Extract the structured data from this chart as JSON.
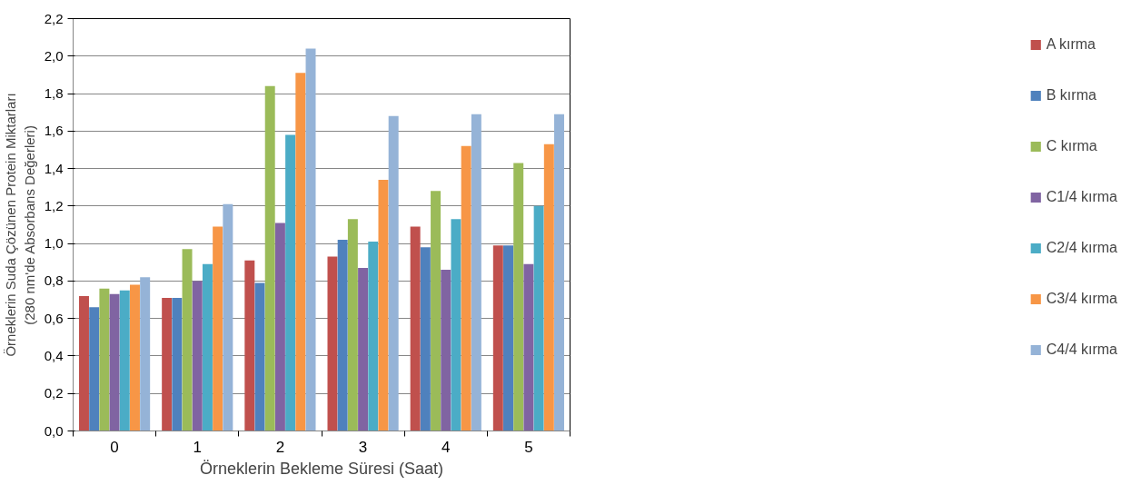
{
  "chart_data": {
    "type": "bar",
    "xlabel": "Örneklerin Bekleme Süresi (Saat)",
    "ylabel": "Örneklerin Suda Çözünen Protein Miktarları\n(280 nm'de Absorbans Değerleri)",
    "categories": [
      "0",
      "1",
      "2",
      "3",
      "4",
      "5"
    ],
    "series": [
      {
        "name": "A kırma",
        "color": "#c0504d",
        "values": [
          0.72,
          0.71,
          0.91,
          0.93,
          1.09,
          0.99
        ]
      },
      {
        "name": "B kırma",
        "color": "#4f81bd",
        "values": [
          0.66,
          0.71,
          0.79,
          1.02,
          0.98,
          0.99
        ]
      },
      {
        "name": "C kırma",
        "color": "#9bbb59",
        "values": [
          0.76,
          0.97,
          1.84,
          1.13,
          1.28,
          1.43
        ]
      },
      {
        "name": "C1/4 kırma",
        "color": "#8064a2",
        "values": [
          0.73,
          0.8,
          1.11,
          0.87,
          0.86,
          0.89
        ]
      },
      {
        "name": "C2/4 kırma",
        "color": "#4bacc6",
        "values": [
          0.75,
          0.89,
          1.58,
          1.01,
          1.13,
          1.2
        ]
      },
      {
        "name": "C3/4 kırma",
        "color": "#f79646",
        "values": [
          0.78,
          1.09,
          1.91,
          1.34,
          1.52,
          1.53
        ]
      },
      {
        "name": "C4/4 kırma",
        "color": "#95b3d7",
        "values": [
          0.82,
          1.21,
          2.04,
          1.68,
          1.69,
          1.69
        ]
      }
    ],
    "ylim": [
      0,
      2.2
    ],
    "yticks": [
      {
        "value": 0,
        "label": "0,0"
      },
      {
        "value": 0.2,
        "label": "0,2"
      },
      {
        "value": 0.4,
        "label": "0,4"
      },
      {
        "value": 0.6,
        "label": "0,6"
      },
      {
        "value": 0.8,
        "label": "0,8"
      },
      {
        "value": 1.0,
        "label": "1,0"
      },
      {
        "value": 1.2,
        "label": "1,2"
      },
      {
        "value": 1.4,
        "label": "1,4"
      },
      {
        "value": 1.6,
        "label": "1,6"
      },
      {
        "value": 1.8,
        "label": "1,8"
      },
      {
        "value": 2.0,
        "label": "2,0"
      },
      {
        "value": 2.2,
        "label": "2,2"
      }
    ],
    "grid": "y",
    "legend": "right"
  }
}
